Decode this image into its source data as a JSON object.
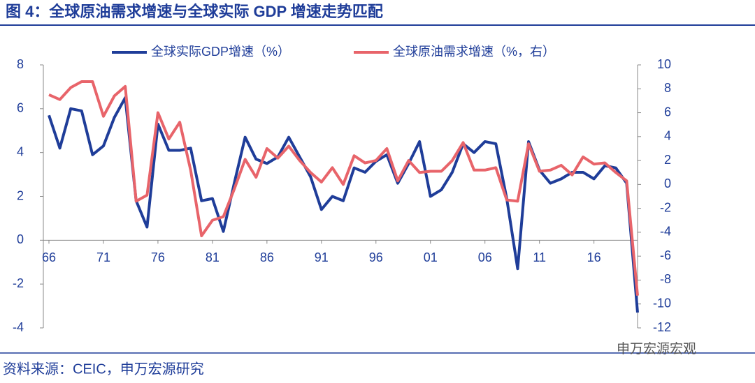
{
  "chart_data": {
    "type": "line",
    "title": "图 4：全球原油需求增速与全球实际 GDP 增速走势匹配",
    "source": "资料来源：CEIC，申万宏源研究",
    "watermark": "申万宏源宏观",
    "categories": [
      "66",
      null,
      null,
      null,
      null,
      "71",
      null,
      null,
      null,
      null,
      "76",
      null,
      null,
      null,
      null,
      "81",
      null,
      null,
      null,
      null,
      "86",
      null,
      null,
      null,
      null,
      "91",
      null,
      null,
      null,
      null,
      "96",
      null,
      null,
      null,
      null,
      "01",
      null,
      null,
      null,
      null,
      "06",
      null,
      null,
      null,
      null,
      "11",
      null,
      null,
      null,
      null,
      "16",
      null,
      null,
      null,
      null
    ],
    "series": [
      {
        "name": "全球实际GDP增速（%）",
        "color": "#1f3d99",
        "values": [
          5.7,
          4.2,
          6.0,
          5.9,
          3.9,
          4.3,
          5.6,
          6.5,
          1.8,
          0.6,
          5.3,
          4.1,
          4.1,
          4.2,
          1.8,
          1.9,
          0.4,
          2.6,
          4.7,
          3.7,
          3.5,
          3.8,
          4.7,
          3.8,
          2.9,
          1.4,
          2.0,
          1.8,
          3.3,
          3.1,
          3.6,
          3.9,
          2.6,
          3.5,
          4.5,
          2.0,
          2.3,
          3.1,
          4.4,
          4.0,
          4.5,
          4.4,
          1.9,
          -1.3,
          4.5,
          3.2,
          2.6,
          2.8,
          3.1,
          3.1,
          2.8,
          3.4,
          3.3,
          2.6,
          -3.3
        ]
      },
      {
        "name": "全球原油需求增速（%，右）",
        "color": "#e8646a",
        "axis": "y2",
        "values": [
          7.5,
          7.1,
          8.1,
          8.6,
          8.6,
          5.7,
          7.4,
          8.2,
          -1.4,
          -0.9,
          6.0,
          3.8,
          5.2,
          1.2,
          -4.3,
          -3.0,
          -2.7,
          -0.4,
          2.1,
          0.6,
          3.0,
          2.2,
          3.2,
          2.0,
          1.0,
          0.2,
          1.4,
          0.0,
          2.4,
          1.8,
          2.0,
          3.0,
          0.3,
          2.0,
          1.0,
          1.1,
          1.1,
          2.0,
          3.5,
          1.2,
          1.2,
          1.4,
          -1.3,
          -1.4,
          3.4,
          1.1,
          1.2,
          1.6,
          0.8,
          2.3,
          1.7,
          1.8,
          1.0,
          0.3,
          -9.3
        ]
      }
    ],
    "ylim": [
      -4,
      8
    ],
    "yticks": [
      -4,
      -2,
      0,
      2,
      4,
      6,
      8
    ],
    "y2lim": [
      -12,
      10
    ],
    "y2ticks": [
      -12,
      -10,
      -8,
      -6,
      -4,
      -2,
      0,
      2,
      4,
      6,
      8,
      10
    ]
  }
}
